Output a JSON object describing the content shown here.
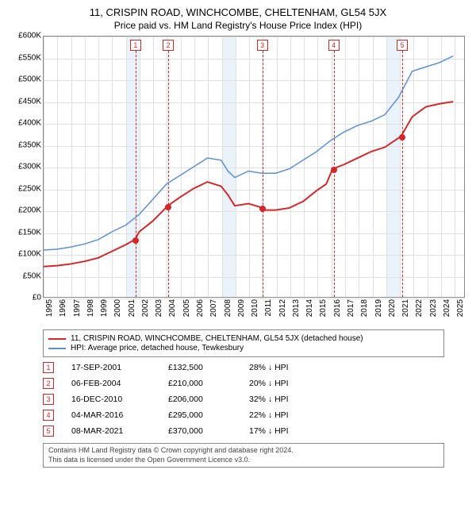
{
  "title": "11, CRISPIN ROAD, WINCHCOMBE, CHELTENHAM, GL54 5JX",
  "subtitle": "Price paid vs. HM Land Registry's House Price Index (HPI)",
  "chart": {
    "type": "line",
    "background_color": "#ffffff",
    "grid_color": "#e0e0e0",
    "border_color": "#888888",
    "bands": [
      {
        "from": 2001,
        "to": 2002,
        "color": "#eaf2fa"
      },
      {
        "from": 2008,
        "to": 2009,
        "color": "#eaf2fa"
      },
      {
        "from": 2020,
        "to": 2021,
        "color": "#eaf2fa"
      }
    ],
    "y": {
      "min": 0,
      "max": 600000,
      "step": 50000,
      "labels": [
        "£0",
        "£50K",
        "£100K",
        "£150K",
        "£200K",
        "£250K",
        "£300K",
        "£350K",
        "£400K",
        "£450K",
        "£500K",
        "£550K",
        "£600K"
      ],
      "label_fontsize": 10
    },
    "x": {
      "min": 1995,
      "max": 2025.8,
      "step": 1,
      "labels": [
        "1995",
        "1996",
        "1997",
        "1998",
        "1999",
        "2000",
        "2001",
        "2002",
        "2003",
        "2004",
        "2005",
        "2006",
        "2007",
        "2008",
        "2009",
        "2010",
        "2011",
        "2012",
        "2013",
        "2014",
        "2015",
        "2016",
        "2017",
        "2018",
        "2019",
        "2020",
        "2021",
        "2022",
        "2023",
        "2024",
        "2025"
      ],
      "label_fontsize": 10
    },
    "series": [
      {
        "name": "11, CRISPIN ROAD, WINCHCOMBE, CHELTENHAM, GL54 5JX (detached house)",
        "color": "#d62728",
        "line_width": 2,
        "points": [
          [
            1995,
            70000
          ],
          [
            1996,
            72000
          ],
          [
            1997,
            76000
          ],
          [
            1998,
            82000
          ],
          [
            1999,
            90000
          ],
          [
            2000,
            105000
          ],
          [
            2001,
            120000
          ],
          [
            2001.71,
            132500
          ],
          [
            2002,
            150000
          ],
          [
            2003,
            175000
          ],
          [
            2004.1,
            210000
          ],
          [
            2005,
            230000
          ],
          [
            2006,
            250000
          ],
          [
            2007,
            265000
          ],
          [
            2008,
            255000
          ],
          [
            2008.5,
            235000
          ],
          [
            2009,
            210000
          ],
          [
            2010,
            215000
          ],
          [
            2010.96,
            206000
          ],
          [
            2011,
            200000
          ],
          [
            2012,
            200000
          ],
          [
            2013,
            205000
          ],
          [
            2014,
            220000
          ],
          [
            2015,
            245000
          ],
          [
            2015.7,
            260000
          ],
          [
            2016.17,
            295000
          ],
          [
            2017,
            305000
          ],
          [
            2018,
            320000
          ],
          [
            2019,
            335000
          ],
          [
            2020,
            345000
          ],
          [
            2021.18,
            370000
          ],
          [
            2022,
            415000
          ],
          [
            2023,
            438000
          ],
          [
            2024,
            445000
          ],
          [
            2025,
            450000
          ]
        ]
      },
      {
        "name": "HPI: Average price, detached house, Tewkesbury",
        "color": "#5b8fd6",
        "line_width": 1.5,
        "points": [
          [
            1995,
            108000
          ],
          [
            1996,
            110000
          ],
          [
            1997,
            115000
          ],
          [
            1998,
            122000
          ],
          [
            1999,
            132000
          ],
          [
            2000,
            150000
          ],
          [
            2001,
            165000
          ],
          [
            2002,
            190000
          ],
          [
            2003,
            225000
          ],
          [
            2004,
            260000
          ],
          [
            2005,
            280000
          ],
          [
            2006,
            300000
          ],
          [
            2007,
            320000
          ],
          [
            2008,
            315000
          ],
          [
            2008.5,
            290000
          ],
          [
            2009,
            275000
          ],
          [
            2010,
            290000
          ],
          [
            2011,
            285000
          ],
          [
            2012,
            285000
          ],
          [
            2013,
            295000
          ],
          [
            2014,
            315000
          ],
          [
            2015,
            335000
          ],
          [
            2016,
            360000
          ],
          [
            2017,
            380000
          ],
          [
            2018,
            395000
          ],
          [
            2019,
            405000
          ],
          [
            2020,
            420000
          ],
          [
            2021,
            460000
          ],
          [
            2022,
            520000
          ],
          [
            2023,
            530000
          ],
          [
            2024,
            540000
          ],
          [
            2025,
            555000
          ]
        ]
      }
    ],
    "markers": [
      {
        "n": "1",
        "x": 2001.71,
        "y": 132500
      },
      {
        "n": "2",
        "x": 2004.1,
        "y": 210000
      },
      {
        "n": "3",
        "x": 2010.96,
        "y": 206000
      },
      {
        "n": "4",
        "x": 2016.17,
        "y": 295000
      },
      {
        "n": "5",
        "x": 2021.18,
        "y": 370000
      }
    ]
  },
  "legend": {
    "items": [
      {
        "color": "#d62728",
        "label": "11, CRISPIN ROAD, WINCHCOMBE, CHELTENHAM, GL54 5JX (detached house)"
      },
      {
        "color": "#5b8fd6",
        "label": "HPI: Average price, detached house, Tewkesbury"
      }
    ]
  },
  "events": [
    {
      "n": "1",
      "date": "17-SEP-2001",
      "price": "£132,500",
      "pct": "28%",
      "arrow": "↓",
      "suffix": "HPI"
    },
    {
      "n": "2",
      "date": "06-FEB-2004",
      "price": "£210,000",
      "pct": "20%",
      "arrow": "↓",
      "suffix": "HPI"
    },
    {
      "n": "3",
      "date": "16-DEC-2010",
      "price": "£206,000",
      "pct": "32%",
      "arrow": "↓",
      "suffix": "HPI"
    },
    {
      "n": "4",
      "date": "04-MAR-2016",
      "price": "£295,000",
      "pct": "22%",
      "arrow": "↓",
      "suffix": "HPI"
    },
    {
      "n": "5",
      "date": "08-MAR-2021",
      "price": "£370,000",
      "pct": "17%",
      "arrow": "↓",
      "suffix": "HPI"
    }
  ],
  "footnote": {
    "line1": "Contains HM Land Registry data © Crown copyright and database right 2024.",
    "line2": "This data is licensed under the Open Government Licence v3.0."
  }
}
